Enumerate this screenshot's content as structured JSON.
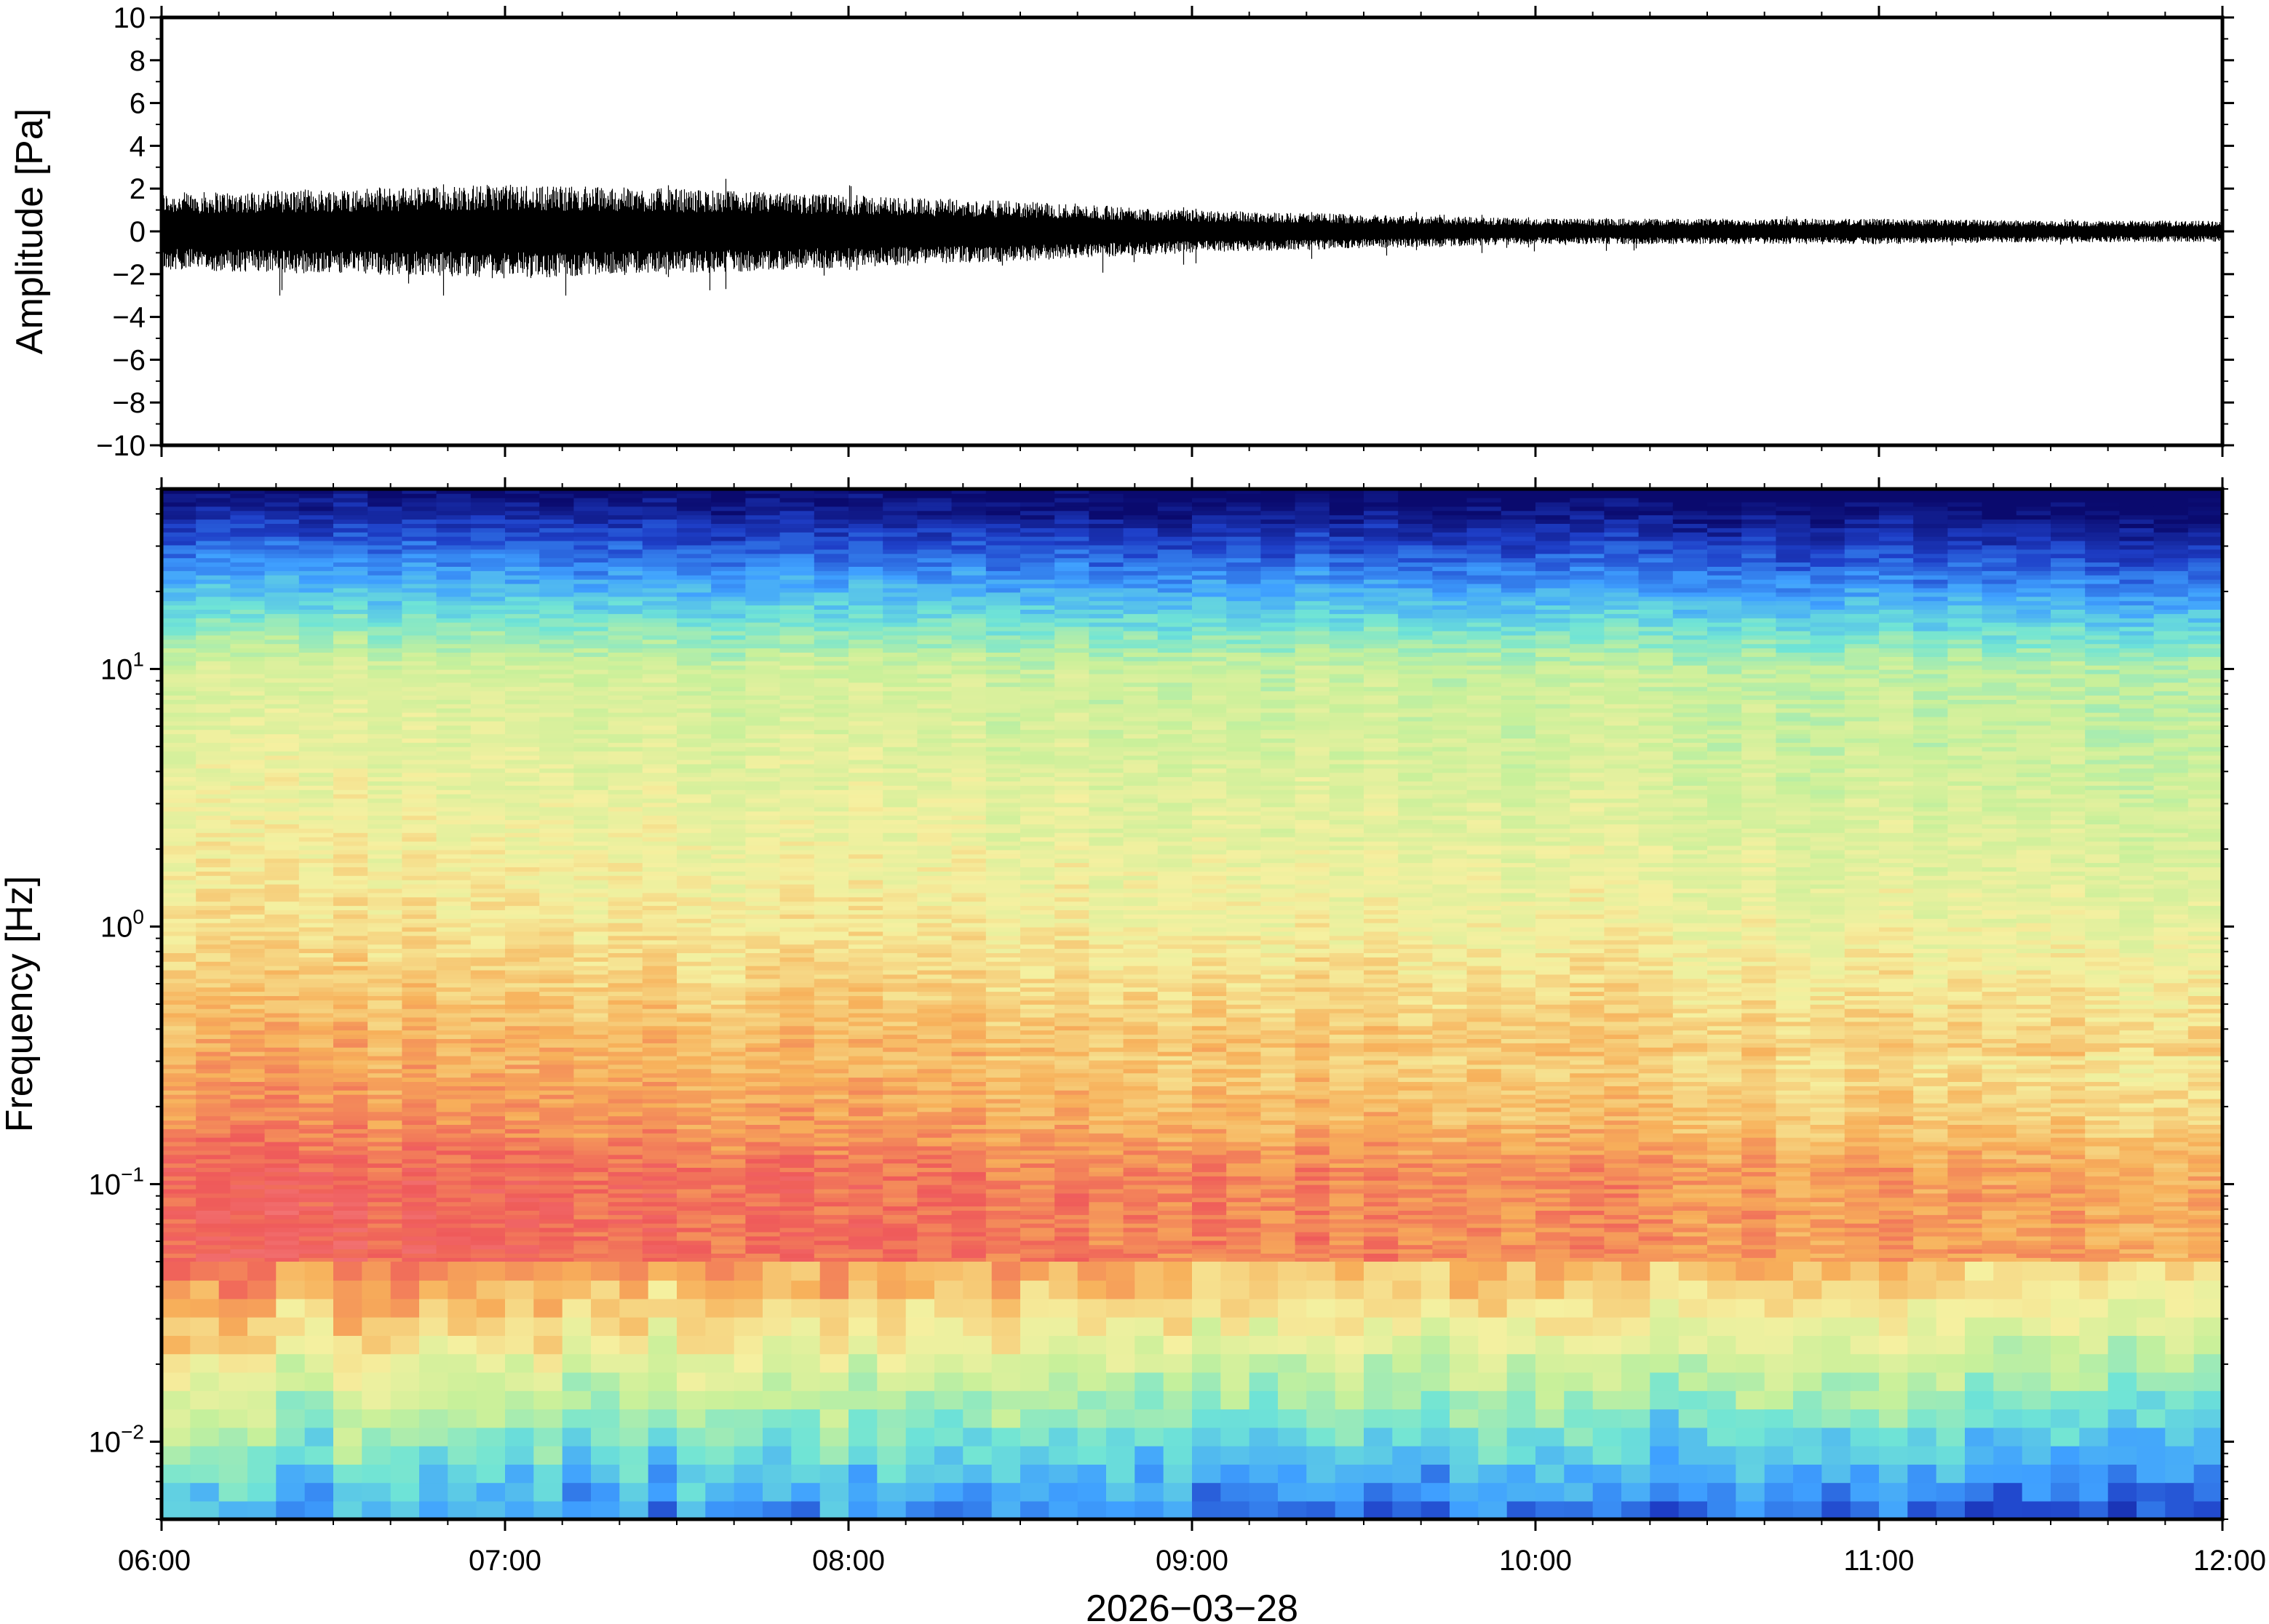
{
  "chart_data": [
    {
      "type": "line",
      "panel": "waveform",
      "ylabel": "Amplitude [Pa]",
      "ylim": [
        -10,
        10
      ],
      "yticks": [
        -10,
        -8,
        -6,
        -4,
        -2,
        0,
        2,
        4,
        6,
        8,
        10
      ],
      "ytick_labels": [
        "−10",
        "−8",
        "−6",
        "−4",
        "−2",
        "0",
        "2",
        "4",
        "6",
        "8",
        "10"
      ],
      "xlim": [
        "06:00",
        "12:00"
      ],
      "series": [
        {
          "x": [
            "06:00",
            "06:30",
            "07:00",
            "07:30",
            "08:00",
            "08:30",
            "09:00",
            "09:30",
            "10:00",
            "10:30",
            "11:00",
            "11:30",
            "12:00"
          ],
          "envelope": [
            1.8,
            2.0,
            2.2,
            2.0,
            1.7,
            1.4,
            1.0,
            0.8,
            0.6,
            0.6,
            0.6,
            0.5,
            0.5
          ],
          "peak_min": -3.0,
          "peak_max": 2.7
        }
      ]
    },
    {
      "type": "heatmap",
      "panel": "spectrogram",
      "ylabel": "Frequency [Hz]",
      "yscale": "log",
      "ylim": [
        0.005,
        50
      ],
      "yticks": [
        0.01,
        0.1,
        1,
        10
      ],
      "ytick_labels": [
        {
          "base": "10",
          "exp": "−2"
        },
        {
          "base": "10",
          "exp": "−1"
        },
        {
          "base": "10",
          "exp": "0"
        },
        {
          "base": "10",
          "exp": "1"
        }
      ],
      "xlabel": "2026−03−28",
      "xticks": [
        "06:00",
        "07:00",
        "08:00",
        "09:00",
        "10:00",
        "11:00",
        "12:00"
      ],
      "colormap": [
        "#0a0a6e",
        "#1e3fc8",
        "#3fa0ff",
        "#6fe4d6",
        "#c8f09a",
        "#f5f0a0",
        "#f7b05a",
        "#ef5a5a",
        "#f58c8c"
      ]
    }
  ]
}
